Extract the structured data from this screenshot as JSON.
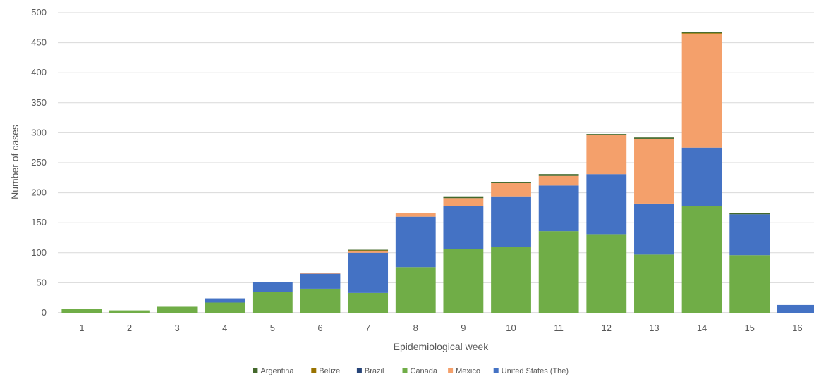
{
  "chart_data": {
    "type": "bar",
    "stacked": true,
    "title": "",
    "xlabel": "Epidemiological week",
    "ylabel": "Number of cases",
    "ylim": [
      0,
      500
    ],
    "yticks": [
      0,
      50,
      100,
      150,
      200,
      250,
      300,
      350,
      400,
      450,
      500
    ],
    "grid": true,
    "legend_position": "bottom",
    "categories": [
      "1",
      "2",
      "3",
      "4",
      "5",
      "6",
      "7",
      "8",
      "9",
      "10",
      "11",
      "12",
      "13",
      "14",
      "15",
      "16"
    ],
    "series": [
      {
        "name": "Canada",
        "color": "#70AD47",
        "values": [
          6,
          4,
          10,
          17,
          35,
          40,
          33,
          76,
          106,
          110,
          136,
          131,
          97,
          178,
          96,
          0
        ]
      },
      {
        "name": "United States (The)",
        "color": "#4472C4",
        "values": [
          0,
          0,
          0,
          7,
          16,
          25,
          67,
          84,
          72,
          84,
          76,
          100,
          85,
          97,
          68,
          13
        ]
      },
      {
        "name": "Brazil",
        "color": "#264478",
        "values": [
          0,
          0,
          0,
          0,
          0,
          0,
          0,
          0,
          0,
          0,
          0,
          0,
          0,
          0,
          0,
          0
        ]
      },
      {
        "name": "Mexico",
        "color": "#F4A06B",
        "values": [
          0,
          0,
          0,
          0,
          0,
          1,
          3,
          6,
          13,
          22,
          16,
          65,
          107,
          190,
          0,
          0
        ]
      },
      {
        "name": "Belize",
        "color": "#997300",
        "values": [
          0,
          0,
          0,
          0,
          0,
          0,
          1,
          0,
          0,
          0,
          0,
          1,
          1,
          1,
          0,
          0
        ]
      },
      {
        "name": "Argentina",
        "color": "#43682B",
        "values": [
          0,
          0,
          0,
          0,
          0,
          0,
          1,
          0,
          3,
          2,
          3,
          1,
          2,
          2,
          2,
          0
        ]
      }
    ],
    "legend_order": [
      "Argentina",
      "Belize",
      "Brazil",
      "Canada",
      "Mexico",
      "United States (The)"
    ]
  }
}
